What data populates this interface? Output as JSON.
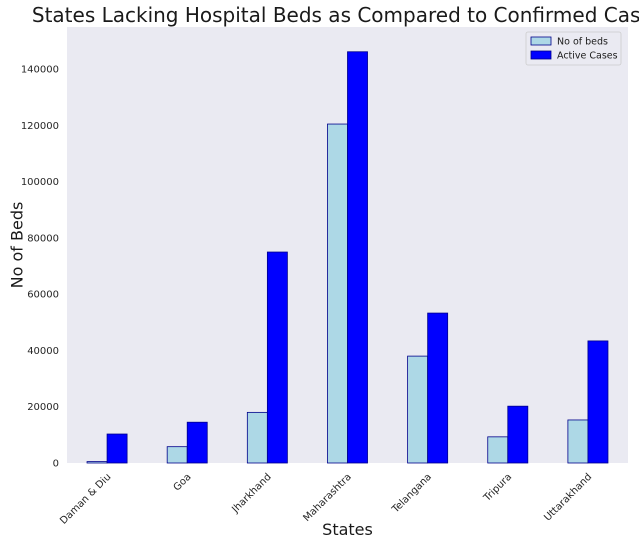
{
  "chart_data": {
    "type": "bar",
    "title": "States Lacking Hospital Beds as Compared to Confirmed Cases",
    "xlabel": "States",
    "ylabel": "No of Beds",
    "categories": [
      "Daman & Diu",
      "Goa",
      "Jharkhand",
      "Maharashtra",
      "Telangana",
      "Tripura",
      "Uttarakhand"
    ],
    "series": [
      {
        "name": "No of beds",
        "values": [
          500,
          5800,
          18000,
          120500,
          38000,
          9300,
          15300
        ],
        "color": "#add8e6",
        "edge": "#00008b"
      },
      {
        "name": "Active Cases",
        "values": [
          10300,
          14500,
          75000,
          146200,
          53300,
          20200,
          43400
        ],
        "color": "#0000ff",
        "edge": "#00008b"
      }
    ],
    "ylim": [
      0,
      155000
    ],
    "yticks": [
      0,
      20000,
      40000,
      60000,
      80000,
      100000,
      120000,
      140000
    ],
    "grid": false,
    "legend_position": "top-right",
    "background": "#eaeaf2"
  }
}
